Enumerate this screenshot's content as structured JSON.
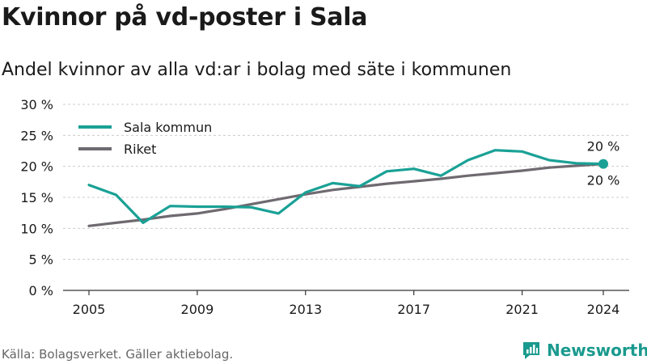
{
  "title": "Kvinnor på vd-poster i Sala",
  "subtitle": "Andel kvinnor av alla vd:ar i bolag med säte i kommunen",
  "source": "Källa: Bolagsverket. Gäller aktiebolag.",
  "brand": {
    "name": "Newsworthy",
    "icon": "newsworthy-logo-icon",
    "color": "#1a9a8e"
  },
  "colors": {
    "sala": "#1aa196",
    "riket": "#6e6a70",
    "grid": "#cccccc",
    "axis": "#333333"
  },
  "chart_data": {
    "type": "line",
    "title": "Kvinnor på vd-poster i Sala",
    "xlabel": "",
    "ylabel": "",
    "x": [
      2005,
      2006,
      2007,
      2008,
      2009,
      2010,
      2011,
      2012,
      2013,
      2014,
      2015,
      2016,
      2017,
      2018,
      2019,
      2020,
      2021,
      2022,
      2023,
      2024
    ],
    "x_ticks": [
      2005,
      2009,
      2013,
      2017,
      2021,
      2024
    ],
    "x_tick_labels": [
      "2005",
      "2009",
      "2013",
      "2017",
      "2021",
      "2024"
    ],
    "ylim": [
      0,
      30
    ],
    "y_ticks": [
      0,
      5,
      10,
      15,
      20,
      25,
      30
    ],
    "y_tick_labels": [
      "0 %",
      "5 %",
      "10 %",
      "15 %",
      "20 %",
      "25 %",
      "30 %"
    ],
    "grid": true,
    "legend_position": "top-left",
    "series": [
      {
        "name": "Sala kommun",
        "color": "#1aa196",
        "values": [
          17.0,
          15.4,
          10.9,
          13.6,
          13.5,
          13.5,
          13.4,
          12.4,
          15.8,
          17.3,
          16.8,
          19.2,
          19.6,
          18.5,
          21.0,
          22.6,
          22.4,
          21.0,
          20.5,
          20.4
        ],
        "end_label": "20 %"
      },
      {
        "name": "Riket",
        "color": "#6e6a70",
        "values": [
          10.4,
          10.9,
          11.4,
          12.0,
          12.4,
          13.1,
          13.9,
          14.7,
          15.5,
          16.2,
          16.7,
          17.2,
          17.6,
          18.0,
          18.5,
          18.9,
          19.3,
          19.8,
          20.1,
          20.4
        ],
        "end_label": "20 %"
      }
    ]
  }
}
